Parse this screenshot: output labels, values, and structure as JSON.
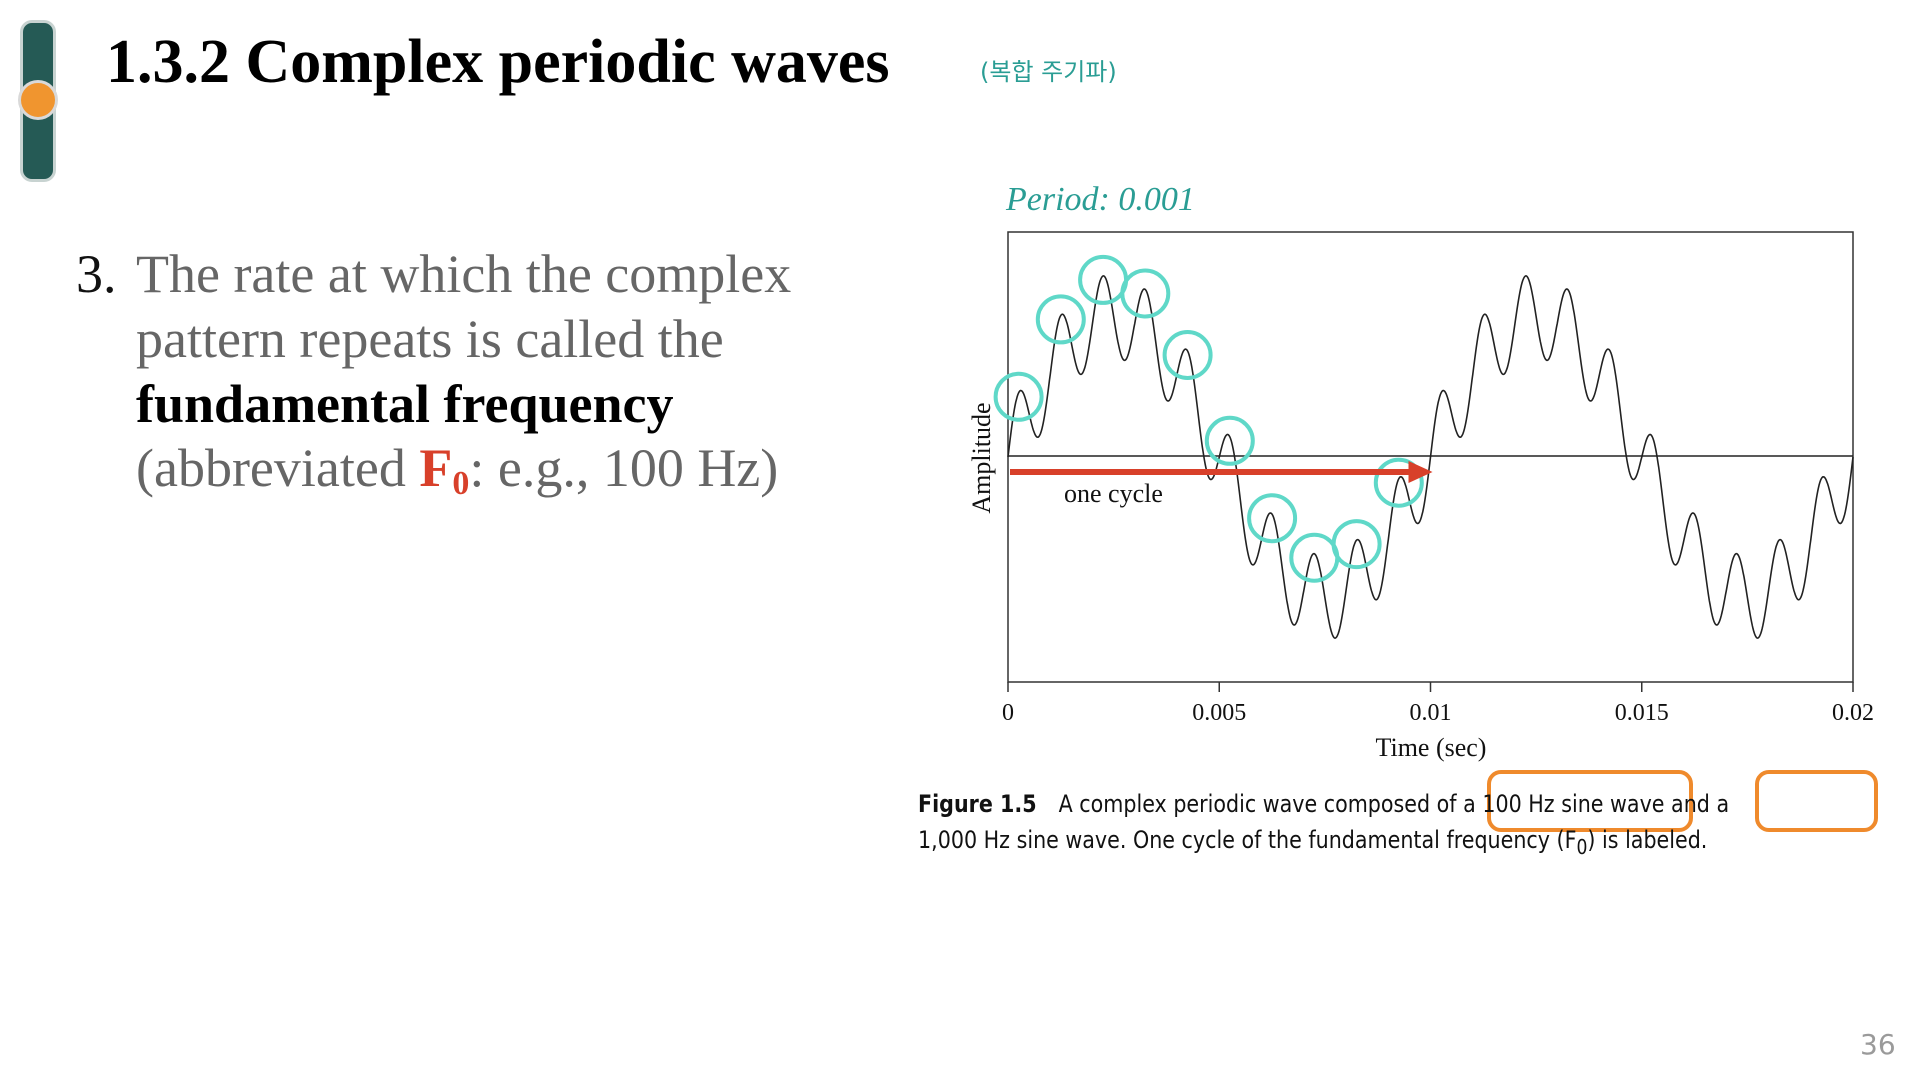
{
  "slide": {
    "title": "1.3.2 Complex periodic waves",
    "subtitle": "(복합 주기파)",
    "page_number": "36"
  },
  "point": {
    "number": "3.",
    "text_1": "The rate at which the complex pattern repeats is called the",
    "emphasis": "fundamental frequency",
    "text_2": "(abbreviated",
    "f0_letter": "F",
    "f0_sub": "0",
    "text_3": ": e.g., 100 Hz)"
  },
  "figure": {
    "period_label": "Period: 0.001",
    "cycle_label": "one cycle",
    "caption_label": "Figure 1.5",
    "caption_1": "A complex periodic wave composed of a",
    "caption_hl_1": "100 Hz sine wave",
    "caption_2": "and a",
    "caption_hl_2": "1,000 Hz",
    "caption_3": "sine wave. One cycle of the fundamental frequency (F",
    "caption_sub": "0",
    "caption_4": ") is labeled.",
    "colors": {
      "circle": "#5fd8c8",
      "arrow": "#d8402a",
      "highlight_box": "#ef8a2c",
      "period_text": "#2a9d94"
    }
  },
  "chart_data": {
    "type": "line",
    "xlabel": "Time (sec)",
    "ylabel": "Amplitude",
    "xlim": [
      0,
      0.02
    ],
    "ylim": [
      -1.6,
      1.6
    ],
    "x_ticks": [
      "0",
      "0.005",
      "0.01",
      "0.015",
      "0.02"
    ],
    "x_tick_values": [
      0,
      0.005,
      0.01,
      0.015,
      0.02
    ],
    "series": [
      {
        "components": [
          {
            "frequency_hz": 100,
            "amplitude": 1.0
          },
          {
            "frequency_hz": 1000,
            "amplitude": 0.3
          }
        ]
      }
    ],
    "annotations": {
      "one_cycle": {
        "from": 0,
        "to": 0.01,
        "label": "one cycle"
      },
      "period": "Period: 0.001"
    }
  }
}
